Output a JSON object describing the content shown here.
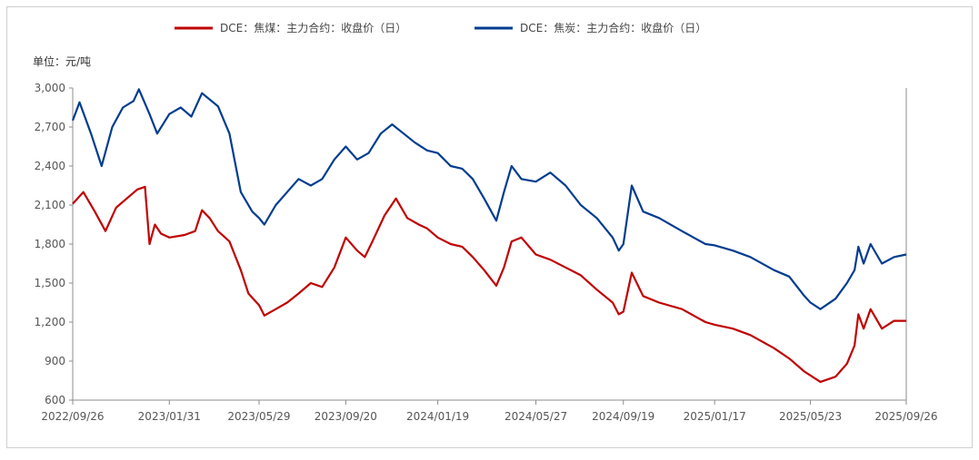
{
  "chart_data": {
    "type": "line",
    "unit_label": "单位：元/吨",
    "ylim": [
      600,
      3000
    ],
    "y_ticks": [
      "3,000",
      "2,700",
      "2,400",
      "2,100",
      "1,800",
      "1,500",
      "1,200",
      "900",
      "600"
    ],
    "y_tick_values": [
      3000,
      2700,
      2400,
      2100,
      1800,
      1500,
      1200,
      900,
      600
    ],
    "x_ticks": [
      "2022/09/26",
      "2023/01/31",
      "2023/05/29",
      "2023/09/20",
      "2024/01/19",
      "2024/05/27",
      "2024/09/19",
      "2025/01/17",
      "2025/05/23",
      "2025/09/26"
    ],
    "grid": false,
    "legend_position": "top",
    "series": [
      {
        "name": "DCE：焦煤：主力合约：收盘价（日）",
        "color": "#C00000",
        "values": [
          [
            "2022-09-26",
            2110
          ],
          [
            "2022-10-10",
            2200
          ],
          [
            "2022-10-25",
            2050
          ],
          [
            "2022-11-08",
            1900
          ],
          [
            "2022-11-22",
            2080
          ],
          [
            "2022-12-06",
            2150
          ],
          [
            "2022-12-20",
            2220
          ],
          [
            "2022-12-30",
            2240
          ],
          [
            "2023-01-05",
            1800
          ],
          [
            "2023-01-12",
            1950
          ],
          [
            "2023-01-20",
            1880
          ],
          [
            "2023-01-31",
            1850
          ],
          [
            "2023-02-20",
            1870
          ],
          [
            "2023-03-06",
            1900
          ],
          [
            "2023-03-15",
            2060
          ],
          [
            "2023-03-25",
            2000
          ],
          [
            "2023-04-05",
            1900
          ],
          [
            "2023-04-20",
            1820
          ],
          [
            "2023-05-05",
            1600
          ],
          [
            "2023-05-15",
            1420
          ],
          [
            "2023-05-29",
            1330
          ],
          [
            "2023-06-05",
            1250
          ],
          [
            "2023-06-20",
            1300
          ],
          [
            "2023-07-05",
            1350
          ],
          [
            "2023-07-20",
            1420
          ],
          [
            "2023-08-05",
            1500
          ],
          [
            "2023-08-20",
            1470
          ],
          [
            "2023-09-05",
            1620
          ],
          [
            "2023-09-20",
            1850
          ],
          [
            "2023-10-05",
            1750
          ],
          [
            "2023-10-15",
            1700
          ],
          [
            "2023-10-25",
            1820
          ],
          [
            "2023-11-10",
            2020
          ],
          [
            "2023-11-25",
            2150
          ],
          [
            "2023-12-10",
            2000
          ],
          [
            "2023-12-25",
            1950
          ],
          [
            "2024-01-05",
            1920
          ],
          [
            "2024-01-19",
            1850
          ],
          [
            "2024-02-05",
            1800
          ],
          [
            "2024-02-20",
            1780
          ],
          [
            "2024-03-05",
            1700
          ],
          [
            "2024-03-20",
            1600
          ],
          [
            "2024-04-05",
            1480
          ],
          [
            "2024-04-15",
            1620
          ],
          [
            "2024-04-25",
            1820
          ],
          [
            "2024-05-08",
            1850
          ],
          [
            "2024-05-27",
            1720
          ],
          [
            "2024-06-15",
            1680
          ],
          [
            "2024-07-05",
            1620
          ],
          [
            "2024-07-25",
            1560
          ],
          [
            "2024-08-15",
            1450
          ],
          [
            "2024-09-05",
            1350
          ],
          [
            "2024-09-13",
            1260
          ],
          [
            "2024-09-19",
            1280
          ],
          [
            "2024-09-30",
            1580
          ],
          [
            "2024-10-15",
            1400
          ],
          [
            "2024-11-05",
            1350
          ],
          [
            "2024-12-05",
            1300
          ],
          [
            "2025-01-05",
            1200
          ],
          [
            "2025-01-17",
            1180
          ],
          [
            "2025-02-10",
            1150
          ],
          [
            "2025-03-05",
            1100
          ],
          [
            "2025-04-05",
            1000
          ],
          [
            "2025-04-25",
            920
          ],
          [
            "2025-05-15",
            820
          ],
          [
            "2025-05-23",
            790
          ],
          [
            "2025-06-05",
            740
          ],
          [
            "2025-06-25",
            780
          ],
          [
            "2025-07-10",
            880
          ],
          [
            "2025-07-20",
            1020
          ],
          [
            "2025-07-25",
            1260
          ],
          [
            "2025-08-01",
            1150
          ],
          [
            "2025-08-10",
            1300
          ],
          [
            "2025-08-25",
            1150
          ],
          [
            "2025-09-10",
            1210
          ],
          [
            "2025-09-26",
            1210
          ]
        ]
      },
      {
        "name": "DCE：焦炭：主力合约：收盘价（日）",
        "color": "#003C8F",
        "values": [
          [
            "2022-09-26",
            2750
          ],
          [
            "2022-10-05",
            2890
          ],
          [
            "2022-10-20",
            2650
          ],
          [
            "2022-11-03",
            2400
          ],
          [
            "2022-11-17",
            2700
          ],
          [
            "2022-12-01",
            2850
          ],
          [
            "2022-12-15",
            2900
          ],
          [
            "2022-12-22",
            2990
          ],
          [
            "2023-01-05",
            2800
          ],
          [
            "2023-01-15",
            2650
          ],
          [
            "2023-01-31",
            2800
          ],
          [
            "2023-02-15",
            2850
          ],
          [
            "2023-03-01",
            2780
          ],
          [
            "2023-03-15",
            2960
          ],
          [
            "2023-04-05",
            2860
          ],
          [
            "2023-04-20",
            2650
          ],
          [
            "2023-05-05",
            2200
          ],
          [
            "2023-05-20",
            2050
          ],
          [
            "2023-05-29",
            2000
          ],
          [
            "2023-06-05",
            1950
          ],
          [
            "2023-06-20",
            2100
          ],
          [
            "2023-07-05",
            2200
          ],
          [
            "2023-07-20",
            2300
          ],
          [
            "2023-08-05",
            2250
          ],
          [
            "2023-08-20",
            2300
          ],
          [
            "2023-09-05",
            2450
          ],
          [
            "2023-09-20",
            2550
          ],
          [
            "2023-10-05",
            2450
          ],
          [
            "2023-10-20",
            2500
          ],
          [
            "2023-11-05",
            2650
          ],
          [
            "2023-11-20",
            2720
          ],
          [
            "2023-12-05",
            2650
          ],
          [
            "2023-12-20",
            2580
          ],
          [
            "2024-01-05",
            2520
          ],
          [
            "2024-01-19",
            2500
          ],
          [
            "2024-02-05",
            2400
          ],
          [
            "2024-02-20",
            2380
          ],
          [
            "2024-03-05",
            2300
          ],
          [
            "2024-03-20",
            2150
          ],
          [
            "2024-04-05",
            1980
          ],
          [
            "2024-04-15",
            2200
          ],
          [
            "2024-04-25",
            2400
          ],
          [
            "2024-05-08",
            2300
          ],
          [
            "2024-05-27",
            2280
          ],
          [
            "2024-06-15",
            2350
          ],
          [
            "2024-07-05",
            2250
          ],
          [
            "2024-07-25",
            2100
          ],
          [
            "2024-08-15",
            2000
          ],
          [
            "2024-09-05",
            1850
          ],
          [
            "2024-09-13",
            1750
          ],
          [
            "2024-09-19",
            1800
          ],
          [
            "2024-09-30",
            2250
          ],
          [
            "2024-10-15",
            2050
          ],
          [
            "2024-11-05",
            2000
          ],
          [
            "2024-12-05",
            1900
          ],
          [
            "2025-01-05",
            1800
          ],
          [
            "2025-01-17",
            1790
          ],
          [
            "2025-02-10",
            1750
          ],
          [
            "2025-03-05",
            1700
          ],
          [
            "2025-04-05",
            1600
          ],
          [
            "2025-04-25",
            1550
          ],
          [
            "2025-05-15",
            1400
          ],
          [
            "2025-05-23",
            1350
          ],
          [
            "2025-06-05",
            1300
          ],
          [
            "2025-06-25",
            1380
          ],
          [
            "2025-07-10",
            1500
          ],
          [
            "2025-07-20",
            1600
          ],
          [
            "2025-07-25",
            1780
          ],
          [
            "2025-08-01",
            1650
          ],
          [
            "2025-08-10",
            1800
          ],
          [
            "2025-08-25",
            1650
          ],
          [
            "2025-09-10",
            1700
          ],
          [
            "2025-09-26",
            1720
          ]
        ]
      }
    ]
  }
}
